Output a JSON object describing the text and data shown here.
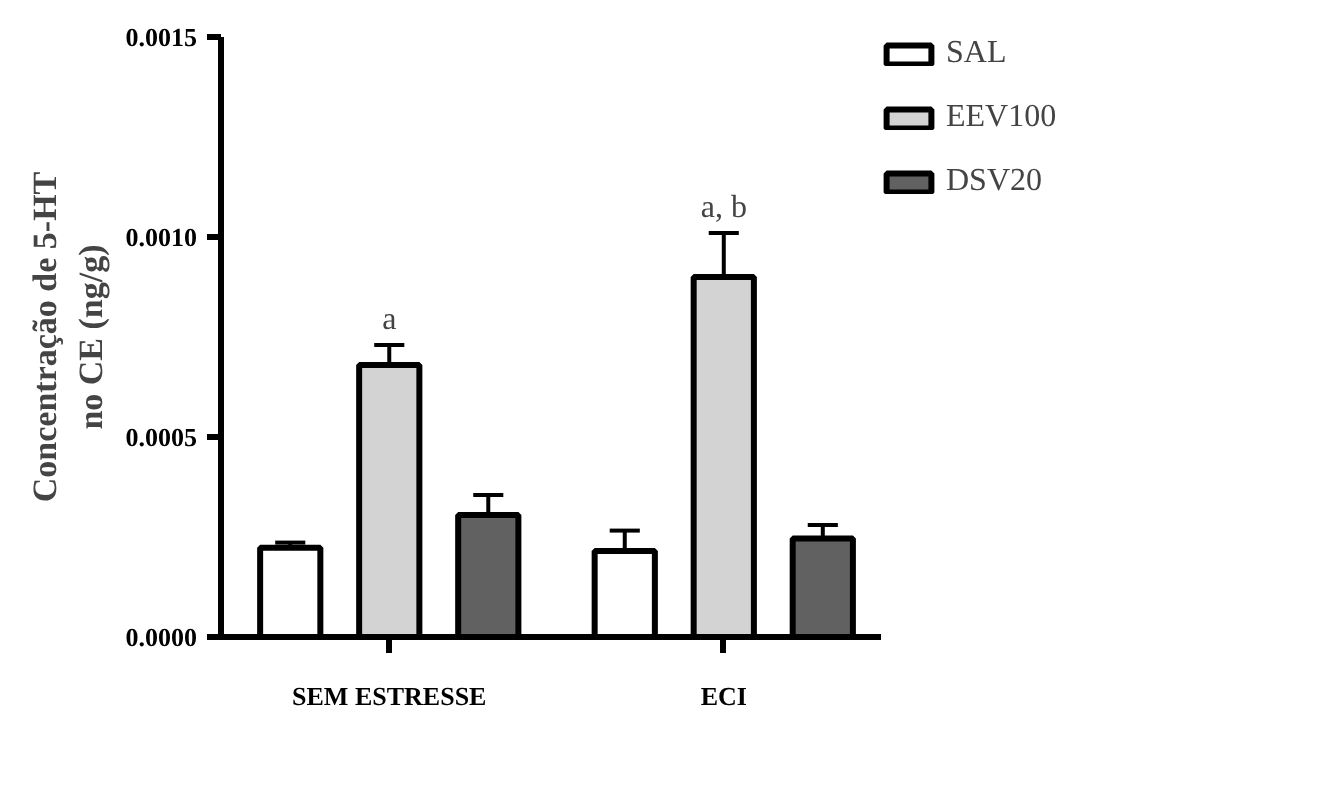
{
  "chart_data": {
    "type": "bar",
    "ylabel": "Concentração de 5-HT\nno CE (ng/g)",
    "categories": [
      "SEM ESTRESSE",
      "ECI"
    ],
    "series": [
      {
        "name": "SAL",
        "color": "#ffffff",
        "values": [
          0.000223,
          0.000215
        ],
        "errors": [
          [
            0.000223,
            0.000236
          ],
          [
            0.000215,
            0.000266
          ]
        ]
      },
      {
        "name": "EEV100",
        "color": "#d3d3d3",
        "values": [
          0.00068,
          0.0009
        ],
        "errors": [
          [
            0.00068,
            0.00073
          ],
          [
            0.0009,
            0.00101
          ]
        ]
      },
      {
        "name": "DSV20",
        "color": "#616161",
        "values": [
          0.000305,
          0.000246
        ],
        "errors": [
          [
            0.000305,
            0.000355
          ],
          [
            0.000246,
            0.00028
          ]
        ]
      }
    ],
    "annotations": [
      {
        "text": "a",
        "x": "SEM ESTRESSE",
        "y": 0.00073
      },
      {
        "text": "a, b",
        "x": "ECI",
        "y": 0.00101
      }
    ],
    "ylim": [
      0,
      0.0015
    ],
    "yticks": [
      {
        "value": 0,
        "label": "0.0000"
      },
      {
        "value": 0.0005,
        "label": "0.0005"
      },
      {
        "value": 0.001,
        "label": "0.0010"
      },
      {
        "value": 0.0015,
        "label": "0.0015"
      }
    ],
    "grid": false,
    "legend": "top right"
  }
}
